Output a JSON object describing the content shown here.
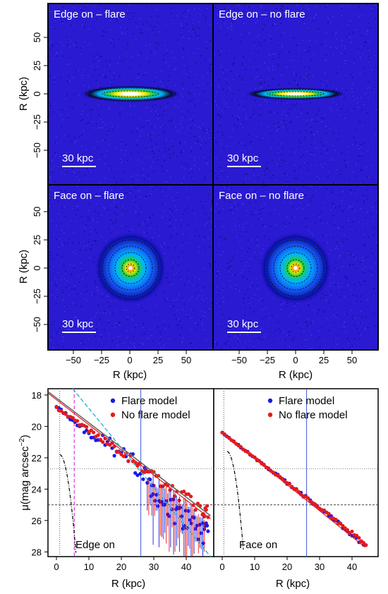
{
  "image_panels": {
    "xlabel": "R (kpc)",
    "ylabel": "R (kpc)",
    "ticks": [
      -50,
      -25,
      0,
      25,
      50
    ],
    "tick_labels": [
      "−50",
      "−25",
      "0",
      "25",
      "50"
    ],
    "scalebar_label": "30 kpc",
    "panels": [
      {
        "title": "Edge on – flare",
        "orientation": "edge",
        "thickness": 1.35
      },
      {
        "title": "Edge on – no flare",
        "orientation": "edge",
        "thickness": 1.0
      },
      {
        "title": "Face on – flare",
        "orientation": "face"
      },
      {
        "title": "Face on – no flare",
        "orientation": "face"
      }
    ]
  },
  "profiles": {
    "ylabel": "μ(mag arcsec",
    "ylabel_sup": "−2",
    "ylabel_tail": ")",
    "xlabel": "R (kpc)",
    "legend": [
      "Flare model",
      "No flare model"
    ],
    "colors": {
      "flare": "#1a1ae6",
      "noflare": "#e61a1a",
      "accent_cyan": "#22b8d8",
      "accent_magenta": "#e03cdc"
    },
    "y_ticks": [
      18,
      20,
      22,
      24,
      26,
      28
    ],
    "x_ticks": [
      0,
      10,
      20,
      30,
      40
    ],
    "left_label": "Edge on",
    "right_label": "Face on"
  },
  "chart_data": [
    {
      "type": "scatter",
      "title": "Edge on",
      "xlabel": "R (kpc)",
      "ylabel": "μ(mag arcsec^-2)",
      "xlim": [
        -1,
        48
      ],
      "ylim": [
        28.3,
        17.6
      ],
      "series": [
        {
          "name": "Flare model",
          "x": [
            0,
            5,
            10,
            15,
            20,
            25,
            28,
            30,
            33,
            36,
            39,
            42,
            45,
            47
          ],
          "y": [
            18.8,
            19.6,
            20.3,
            21.0,
            21.7,
            22.6,
            23.4,
            24.2,
            24.8,
            25.4,
            25.9,
            26.3,
            26.8,
            27.0
          ]
        },
        {
          "name": "No flare model",
          "x": [
            0,
            5,
            10,
            15,
            20,
            25,
            30,
            35,
            40,
            45,
            47
          ],
          "y": [
            18.8,
            19.5,
            20.2,
            20.9,
            21.6,
            22.4,
            23.2,
            23.9,
            24.6,
            25.3,
            25.6
          ]
        }
      ],
      "reference_lines": {
        "vertical": [
          1.0,
          5.5,
          26.0
        ],
        "horizontal": [
          22.7,
          25.0
        ]
      }
    },
    {
      "type": "scatter",
      "title": "Face on",
      "xlabel": "R (kpc)",
      "ylabel": "μ(mag arcsec^-2)",
      "xlim": [
        -1,
        48
      ],
      "ylim": [
        28.3,
        17.6
      ],
      "series": [
        {
          "name": "Flare model",
          "x": [
            0,
            5,
            10,
            15,
            20,
            25,
            30,
            35,
            40,
            45
          ],
          "y": [
            20.4,
            21.2,
            22.0,
            22.8,
            23.6,
            24.4,
            25.2,
            26.0,
            26.9,
            27.8
          ]
        },
        {
          "name": "No flare model",
          "x": [
            0,
            5,
            10,
            15,
            20,
            25,
            30,
            35,
            40,
            45
          ],
          "y": [
            20.4,
            21.2,
            22.0,
            22.8,
            23.6,
            24.4,
            25.2,
            26.0,
            26.8,
            27.6
          ]
        }
      ],
      "reference_lines": {
        "vertical": [
          0.5,
          26.0
        ],
        "horizontal": [
          22.7,
          25.0
        ]
      }
    }
  ]
}
